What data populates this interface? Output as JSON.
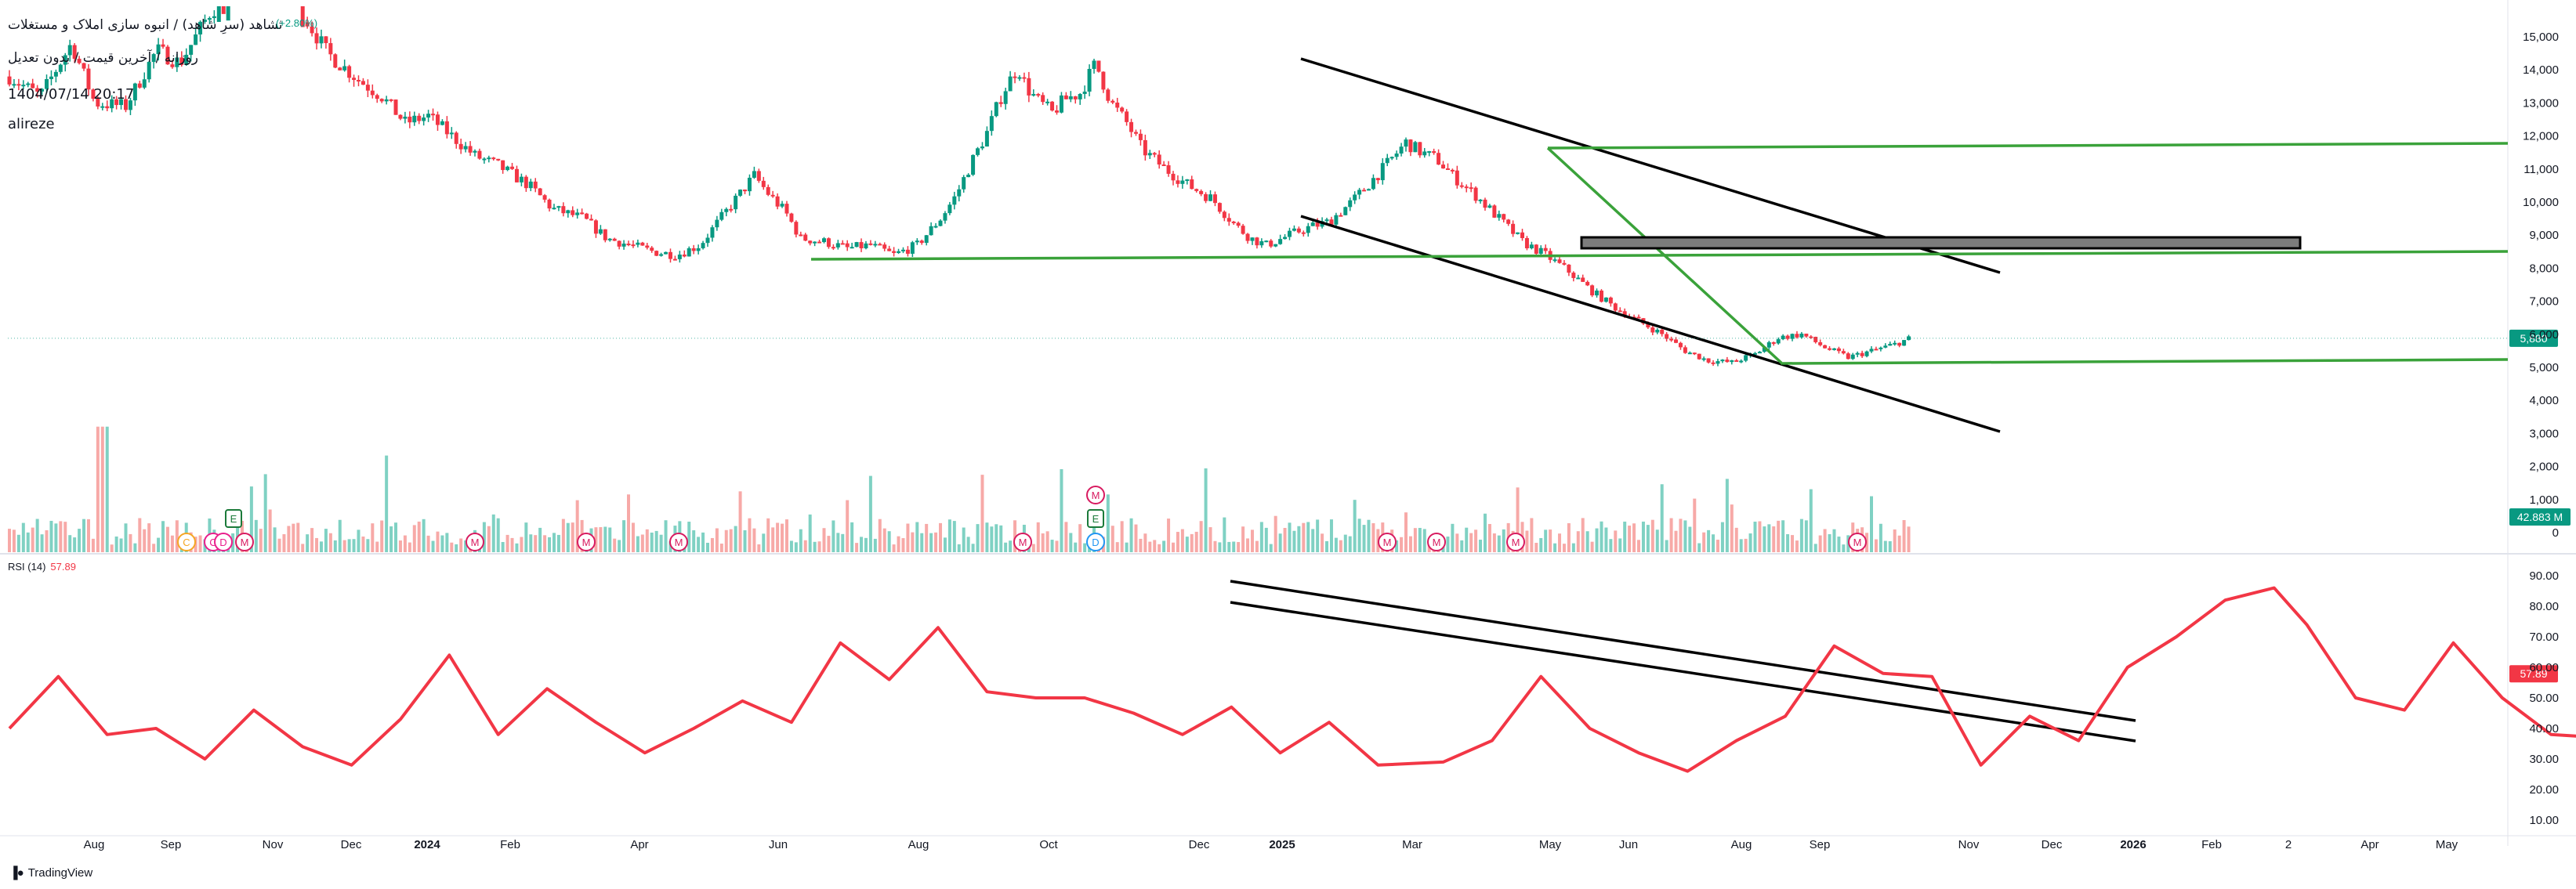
{
  "header": {
    "symbol_title": "ثشاهد (سرِ شاهد) / انبوه سازی املاک و مستغلات",
    "change": "(+2.80%)",
    "subtitle": "روزانه / آخرین قیمت / بدون تعدیل",
    "datetime": "1404/07/14 20:17",
    "author": "alireze"
  },
  "branding": {
    "logo_text": "TradingView",
    "logo_icon": "tradingview-logo-icon"
  },
  "colors": {
    "up": "#089981",
    "down": "#f23645",
    "volume_up": "#7fd1c3",
    "volume_down": "#f7a9a7",
    "rsi": "#f23645",
    "trend_green": "#3aa23a",
    "trend_black": "#000000",
    "zone": "#7c7c7c"
  },
  "chart_data": {
    "type": "candlestick",
    "price_axis": {
      "ylim": [
        0,
        15500
      ],
      "ticks": [
        0,
        1000,
        2000,
        3000,
        4000,
        5000,
        6000,
        7000,
        8000,
        9000,
        10000,
        11000,
        12000,
        13000,
        14000,
        15000
      ],
      "tick_labels": [
        "0",
        "1,000",
        "2,000",
        "3,000",
        "4,000",
        "5,000",
        "6,000",
        "7,000",
        "8,000",
        "9,000",
        "10,000",
        "11,000",
        "12,000",
        "13,000",
        "14,000",
        "15,000"
      ]
    },
    "time_axis": {
      "labels": [
        "Aug",
        "Sep",
        "Nov",
        "Dec",
        "2024",
        "Feb",
        "Apr",
        "Jun",
        "Aug",
        "Oct",
        "Dec",
        "2025",
        "Mar",
        "May",
        "Jun",
        "Aug",
        "Sep",
        "Nov",
        "Dec",
        "2026",
        "Feb",
        "2",
        "Apr",
        "May"
      ],
      "bold": [
        "2024",
        "2025",
        "2026"
      ]
    },
    "last_price": {
      "value": 5880,
      "label": "5,880"
    },
    "last_volume": {
      "label": "42.883 M"
    },
    "price_path": [
      [
        0,
        13800
      ],
      [
        20,
        13200
      ],
      [
        40,
        14800
      ],
      [
        55,
        13000
      ],
      [
        75,
        12900
      ],
      [
        95,
        14600
      ],
      [
        110,
        14200
      ],
      [
        130,
        15800
      ],
      [
        150,
        16500
      ],
      [
        170,
        17000
      ],
      [
        185,
        16000
      ],
      [
        205,
        14500
      ],
      [
        225,
        13700
      ],
      [
        240,
        13200
      ],
      [
        255,
        12400
      ],
      [
        270,
        12600
      ],
      [
        285,
        12000
      ],
      [
        300,
        11400
      ],
      [
        315,
        11100
      ],
      [
        335,
        10500
      ],
      [
        350,
        9800
      ],
      [
        370,
        9500
      ],
      [
        385,
        8900
      ],
      [
        400,
        8700
      ],
      [
        415,
        8500
      ],
      [
        430,
        8400
      ],
      [
        445,
        8700
      ],
      [
        460,
        9600
      ],
      [
        470,
        10200
      ],
      [
        480,
        10800
      ],
      [
        490,
        10200
      ],
      [
        500,
        9700
      ],
      [
        510,
        8900
      ],
      [
        525,
        8800
      ],
      [
        540,
        8600
      ],
      [
        555,
        8700
      ],
      [
        570,
        8400
      ],
      [
        585,
        8700
      ],
      [
        600,
        9500
      ],
      [
        610,
        10200
      ],
      [
        620,
        11200
      ],
      [
        630,
        12100
      ],
      [
        640,
        13300
      ],
      [
        650,
        14100
      ],
      [
        655,
        13500
      ],
      [
        662,
        13100
      ],
      [
        672,
        12700
      ],
      [
        680,
        13100
      ],
      [
        690,
        13300
      ],
      [
        700,
        14200
      ],
      [
        710,
        13000
      ],
      [
        720,
        12400
      ],
      [
        730,
        11600
      ],
      [
        745,
        11000
      ],
      [
        760,
        10500
      ],
      [
        775,
        10100
      ],
      [
        790,
        9300
      ],
      [
        800,
        8900
      ],
      [
        810,
        8700
      ],
      [
        820,
        8900
      ],
      [
        835,
        9200
      ],
      [
        850,
        9400
      ],
      [
        865,
        10000
      ],
      [
        875,
        10500
      ],
      [
        885,
        11000
      ],
      [
        900,
        11800
      ],
      [
        910,
        11500
      ],
      [
        920,
        11300
      ],
      [
        930,
        10800
      ],
      [
        945,
        10200
      ],
      [
        960,
        9500
      ],
      [
        975,
        8800
      ],
      [
        990,
        8400
      ],
      [
        1005,
        7900
      ],
      [
        1020,
        7300
      ],
      [
        1035,
        6800
      ],
      [
        1050,
        6400
      ],
      [
        1065,
        6000
      ],
      [
        1080,
        5500
      ],
      [
        1095,
        5200
      ],
      [
        1110,
        5150
      ],
      [
        1125,
        5400
      ],
      [
        1140,
        5900
      ],
      [
        1155,
        6000
      ],
      [
        1170,
        5600
      ],
      [
        1185,
        5300
      ],
      [
        1200,
        5500
      ],
      [
        1215,
        5700
      ],
      [
        1225,
        5880
      ]
    ],
    "rsi": {
      "label": "RSI (14)",
      "value": 57.89,
      "value_label": "57.89",
      "ylim": [
        5,
        95
      ],
      "ticks": [
        10,
        20,
        30,
        40,
        50,
        60,
        70,
        80,
        90
      ],
      "tick_labels": [
        "10.00",
        "20.00",
        "30.00",
        "40.00",
        "50.00",
        "60.00",
        "70.00",
        "80.00",
        "90.00"
      ],
      "path": [
        [
          0,
          42
        ],
        [
          15,
          55
        ],
        [
          30,
          40
        ],
        [
          45,
          38
        ],
        [
          60,
          32
        ],
        [
          75,
          44
        ],
        [
          90,
          36
        ],
        [
          105,
          26
        ],
        [
          120,
          45
        ],
        [
          135,
          62
        ],
        [
          150,
          40
        ],
        [
          165,
          51
        ],
        [
          180,
          44
        ],
        [
          195,
          30
        ],
        [
          210,
          42
        ],
        [
          225,
          47
        ],
        [
          240,
          44
        ],
        [
          255,
          66
        ],
        [
          270,
          58
        ],
        [
          285,
          71
        ],
        [
          300,
          54
        ],
        [
          315,
          48
        ],
        [
          330,
          52
        ],
        [
          345,
          43
        ],
        [
          360,
          40
        ],
        [
          375,
          45
        ],
        [
          390,
          34
        ],
        [
          405,
          40
        ],
        [
          420,
          30
        ],
        [
          440,
          27
        ],
        [
          455,
          38
        ],
        [
          470,
          55
        ],
        [
          485,
          42
        ],
        [
          500,
          30
        ],
        [
          515,
          28
        ],
        [
          530,
          34
        ],
        [
          545,
          46
        ],
        [
          560,
          65
        ],
        [
          575,
          60
        ],
        [
          590,
          55
        ],
        [
          605,
          30
        ],
        [
          620,
          42
        ],
        [
          635,
          38
        ],
        [
          650,
          58
        ],
        [
          665,
          72
        ],
        [
          680,
          80
        ],
        [
          695,
          88
        ],
        [
          705,
          72
        ],
        [
          720,
          52
        ],
        [
          735,
          44
        ],
        [
          750,
          70
        ],
        [
          765,
          48
        ],
        [
          780,
          40
        ],
        [
          795,
          35
        ],
        [
          810,
          44
        ],
        [
          825,
          32
        ],
        [
          840,
          46
        ],
        [
          855,
          40
        ],
        [
          870,
          56
        ],
        [
          885,
          65
        ],
        [
          900,
          68
        ],
        [
          915,
          62
        ],
        [
          930,
          50
        ],
        [
          945,
          35
        ],
        [
          960,
          28
        ],
        [
          975,
          22
        ],
        [
          990,
          17
        ],
        [
          1005,
          25
        ],
        [
          1020,
          20
        ],
        [
          1035,
          15
        ],
        [
          1050,
          18
        ],
        [
          1065,
          30
        ],
        [
          1080,
          45
        ],
        [
          1095,
          52
        ],
        [
          1110,
          40
        ],
        [
          1125,
          35
        ],
        [
          1140,
          48
        ],
        [
          1155,
          46
        ],
        [
          1160,
          57.89
        ]
      ]
    },
    "volume": {
      "ylim": [
        0,
        3500
      ]
    },
    "events": [
      {
        "letter": "C",
        "type": "earnings-call"
      },
      {
        "letter": "E",
        "type": "earnings"
      },
      {
        "letter": "M",
        "type": "meeting"
      },
      {
        "letter": "D",
        "type": "dividend"
      }
    ]
  }
}
